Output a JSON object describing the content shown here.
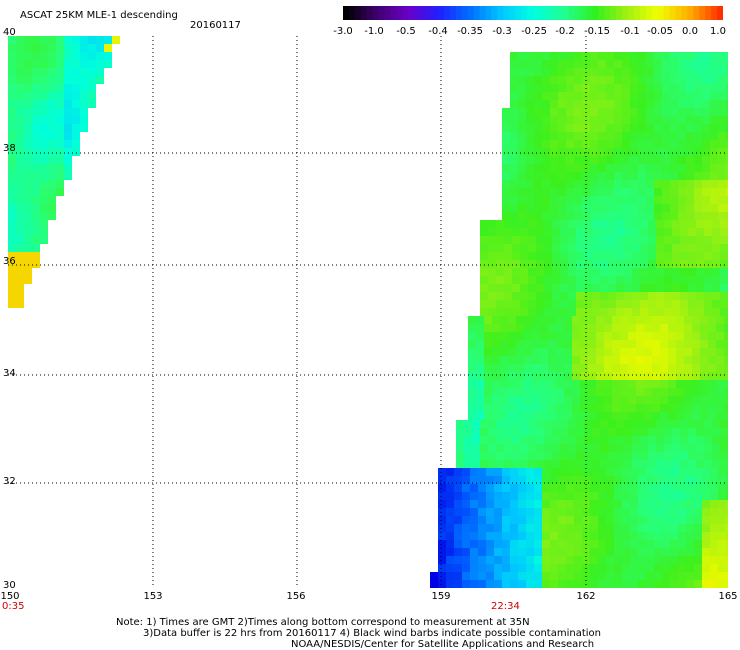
{
  "header": {
    "title": "ASCAT 25KM MLE-1 descending",
    "date": "20160117"
  },
  "colorbar": {
    "labels": [
      "-3.0",
      "-1.0",
      "-0.5",
      "-0.4",
      "-0.35",
      "-0.3",
      "-0.25",
      "-0.2",
      "-0.15",
      "-0.1",
      "-0.05",
      "0.0",
      "1.0"
    ],
    "colors": [
      "#000000",
      "#400070",
      "#6a00c8",
      "#1f20ff",
      "#0070ff",
      "#00c8ff",
      "#00ffe0",
      "#20ff90",
      "#30f020",
      "#a0f010",
      "#f0ff00",
      "#ffb000",
      "#ff3000"
    ]
  },
  "axes": {
    "y_labels": [
      "40",
      "38",
      "36",
      "34",
      "32",
      "30"
    ],
    "x_labels": [
      "150",
      "153",
      "156",
      "159",
      "162",
      "165"
    ],
    "time_labels": [
      "0:35",
      "22:34"
    ]
  },
  "notes": {
    "line1": "Note: 1) Times are GMT 2)Times along bottom correspond to measurement at 35N",
    "line2": "3)Data buffer is 22 hrs from 20160117 4) Black wind barbs indicate possible contamination",
    "line3": "NOAA/NESDIS/Center for Satellite Applications and Research"
  }
}
